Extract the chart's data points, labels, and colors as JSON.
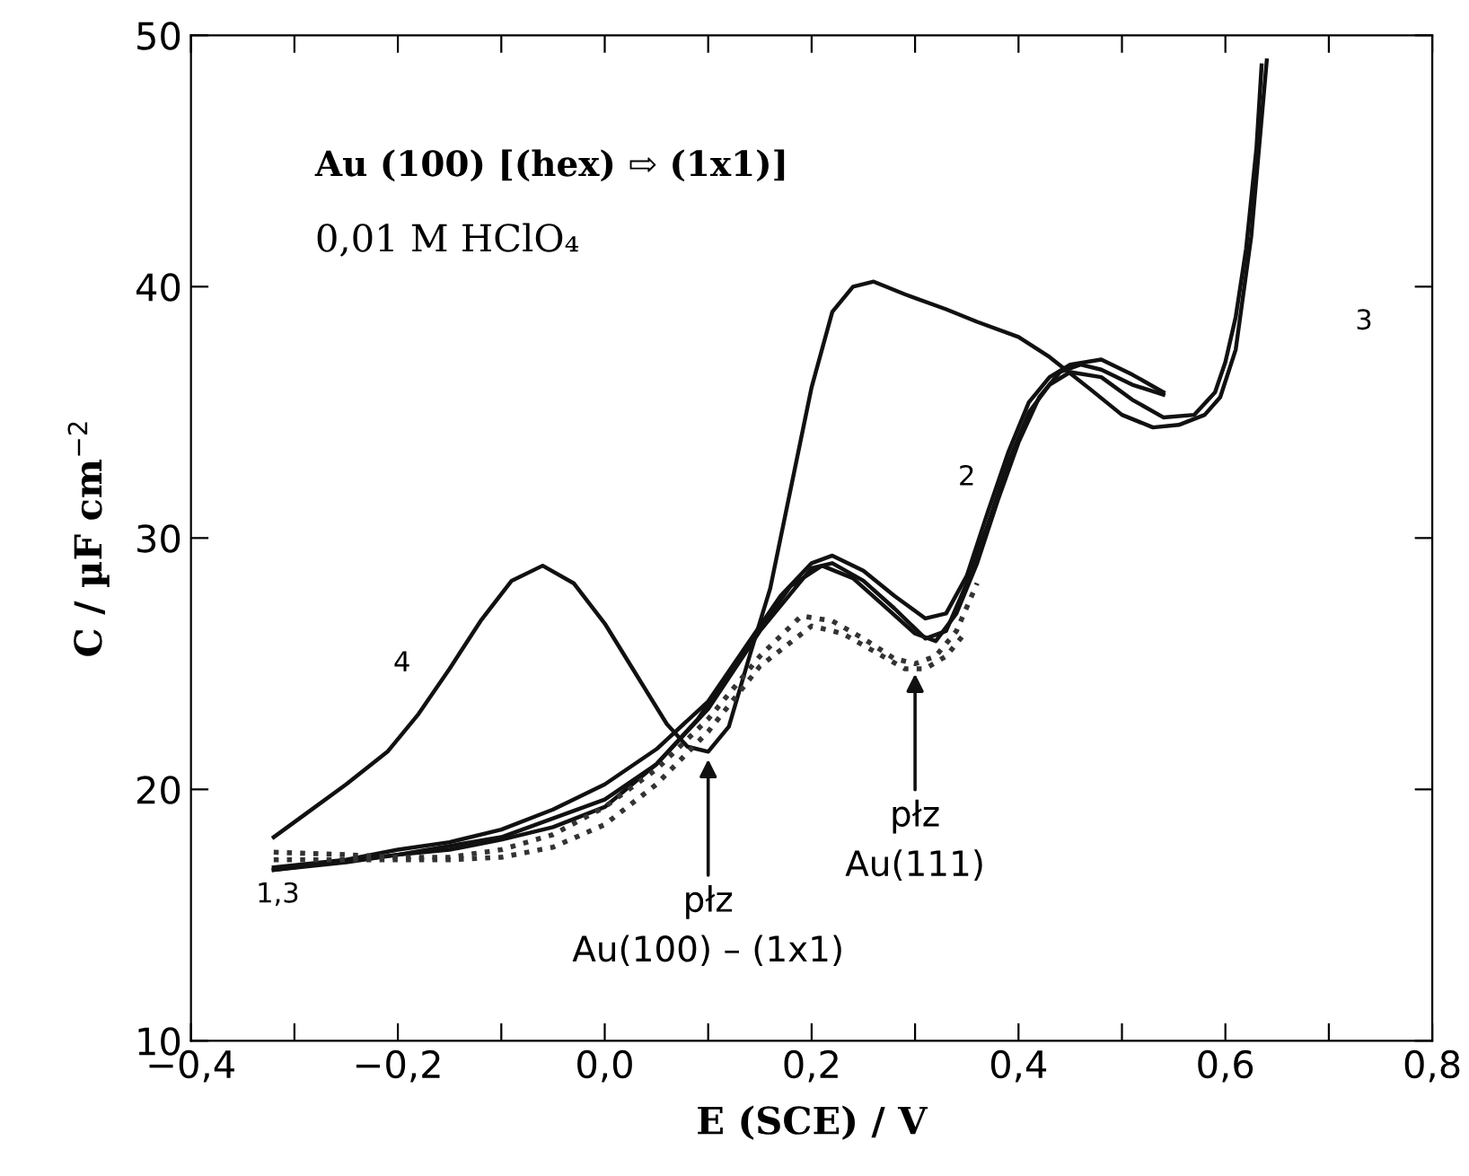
{
  "chart_data": {
    "type": "line",
    "xlabel": "E (SCE) / V",
    "ylabel": "C / µF cm$^{−2}$",
    "xlim": [
      -0.4,
      0.8
    ],
    "ylim": [
      10,
      50
    ],
    "xticks": [
      {
        "value": -0.4,
        "label": "−0,4"
      },
      {
        "value": -0.3,
        "label": null
      },
      {
        "value": -0.2,
        "label": "−0,2"
      },
      {
        "value": -0.1,
        "label": null
      },
      {
        "value": 0.0,
        "label": "0,0"
      },
      {
        "value": 0.1,
        "label": null
      },
      {
        "value": 0.2,
        "label": "0,2"
      },
      {
        "value": 0.3,
        "label": null
      },
      {
        "value": 0.4,
        "label": "0,4"
      },
      {
        "value": 0.5,
        "label": null
      },
      {
        "value": 0.6,
        "label": "0,6"
      },
      {
        "value": 0.7,
        "label": null
      },
      {
        "value": 0.8,
        "label": "0,8"
      }
    ],
    "yticks": [
      10,
      20,
      30,
      40,
      50
    ],
    "grid": false,
    "legend": false,
    "marker": "none",
    "series": [
      {
        "color": "#111111",
        "line_style": "solid",
        "x": [
          0.64,
          0.625,
          0.61,
          0.595,
          0.58,
          0.555,
          0.53,
          0.5,
          0.47,
          0.43,
          0.4,
          0.36,
          0.33,
          0.29,
          0.26,
          0.24,
          0.22,
          0.2,
          0.18,
          0.16,
          0.14,
          0.12,
          0.1,
          0.08,
          0.06,
          0.03,
          0.0,
          -0.03,
          -0.06,
          -0.09,
          -0.12,
          -0.15,
          -0.18,
          -0.21,
          -0.25,
          -0.29,
          -0.32
        ],
        "values": [
          49,
          42,
          37.5,
          35.6,
          34.9,
          34.5,
          34.4,
          34.9,
          35.9,
          37.2,
          38.0,
          38.6,
          39.1,
          39.7,
          40.2,
          40.0,
          39.0,
          36,
          32,
          28,
          25.3,
          22.5,
          21.5,
          21.7,
          22.6,
          24.6,
          26.6,
          28.2,
          28.9,
          28.3,
          26.7,
          24.8,
          23.0,
          21.5,
          20.2,
          19.0,
          18.1
        ]
      },
      {
        "color": "#111111",
        "line_style": "solid",
        "x": [
          -0.32,
          -0.25,
          -0.2,
          -0.15,
          -0.1,
          -0.05,
          0.0,
          0.05,
          0.1,
          0.14,
          0.17,
          0.2,
          0.22,
          0.25,
          0.28,
          0.31,
          0.33,
          0.35,
          0.37,
          0.39,
          0.41,
          0.43,
          0.45,
          0.48,
          0.51,
          0.54
        ],
        "values": [
          16.9,
          17.2,
          17.6,
          17.9,
          18.4,
          19.2,
          20.2,
          21.6,
          23.5,
          25.9,
          27.7,
          29.0,
          29.3,
          28.7,
          27.7,
          26.8,
          27.0,
          28.5,
          31.0,
          33.4,
          35.4,
          36.4,
          36.9,
          37.1,
          36.5,
          35.8
        ]
      },
      {
        "color": "#111111",
        "line_style": "solid",
        "x": [
          0.54,
          0.51,
          0.48,
          0.46,
          0.44,
          0.42,
          0.4,
          0.38,
          0.36,
          0.34,
          0.32,
          0.3,
          0.27,
          0.24,
          0.21,
          0.18,
          0.15,
          0.12,
          0.09,
          0.05,
          0.0,
          -0.05,
          -0.1,
          -0.15,
          -0.2,
          -0.25,
          -0.32
        ],
        "values": [
          35.7,
          36.1,
          36.7,
          36.9,
          36.6,
          35.6,
          33.8,
          31.5,
          29.0,
          27.0,
          25.9,
          26.2,
          27.3,
          28.4,
          28.9,
          28.1,
          26.4,
          24.6,
          22.8,
          21.0,
          19.3,
          18.5,
          18.0,
          17.6,
          17.4,
          17.1,
          16.8
        ]
      },
      {
        "color": "#111111",
        "line_style": "solid",
        "x": [
          -0.32,
          -0.2,
          -0.1,
          0.0,
          0.05,
          0.1,
          0.15,
          0.2,
          0.22,
          0.25,
          0.28,
          0.31,
          0.33,
          0.35,
          0.37,
          0.39,
          0.41,
          0.43,
          0.45,
          0.48,
          0.51,
          0.54,
          0.57,
          0.59,
          0.6,
          0.61,
          0.62,
          0.63,
          0.635
        ],
        "values": [
          16.8,
          17.4,
          18.1,
          19.6,
          21.0,
          23.2,
          26.3,
          28.8,
          29.0,
          28.3,
          27.2,
          26.0,
          26.3,
          28.2,
          30.5,
          33.0,
          35.0,
          36.1,
          36.6,
          36.4,
          35.5,
          34.8,
          34.9,
          35.8,
          37.0,
          38.8,
          41.5,
          45.5,
          48.8
        ]
      },
      {
        "color": "#333333",
        "line_style": "dotted",
        "x": [
          -0.32,
          -0.25,
          -0.2,
          -0.15,
          -0.1,
          -0.05,
          0.0,
          0.05,
          0.1,
          0.15,
          0.19,
          0.22,
          0.25,
          0.28,
          0.3,
          0.32,
          0.34,
          0.36
        ],
        "values": [
          17.5,
          17.4,
          17.3,
          17.3,
          17.6,
          18.2,
          19.3,
          20.8,
          22.8,
          25.3,
          26.9,
          26.7,
          26.0,
          25.2,
          25.0,
          25.3,
          26.3,
          28.2
        ]
      },
      {
        "color": "#333333",
        "line_style": "dotted",
        "x": [
          -0.32,
          -0.25,
          -0.2,
          -0.15,
          -0.1,
          -0.05,
          0.0,
          0.05,
          0.1,
          0.15,
          0.2,
          0.23,
          0.26,
          0.29,
          0.31,
          0.33,
          0.35
        ],
        "values": [
          17.2,
          17.2,
          17.2,
          17.2,
          17.3,
          17.7,
          18.6,
          20.2,
          22.3,
          24.9,
          26.5,
          26.2,
          25.5,
          24.8,
          24.8,
          25.3,
          26.3
        ]
      }
    ],
    "annotations": [
      "Au (100) [(hex) ⇨ (1x1)]",
      "0,01 M HClO₄",
      {
        "text": "płz\nAu(100) – (1x1)",
        "x": 0.1,
        "y": 21.3
      },
      {
        "text": "płz\nAu(111)",
        "x": 0.3,
        "y": 24.7
      },
      "4",
      "1,3",
      "2",
      "3"
    ]
  }
}
